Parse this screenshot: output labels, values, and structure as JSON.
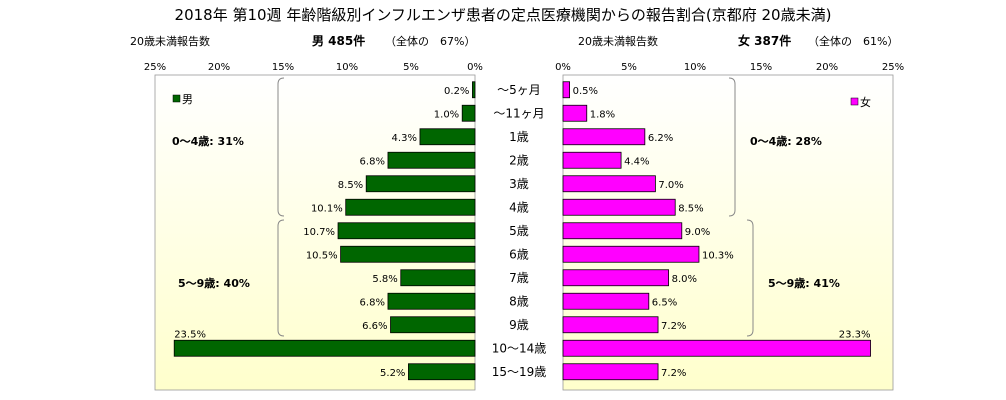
{
  "title": "2018年 第10週 年齢階級別インフルエンザ患者の定点医療機関からの報告割合(京都府 20歳未満)",
  "left_panel": {
    "caption": "20歳未満報告数",
    "summary_prefix": "男 485件",
    "summary_suffix": "（全体の　67%）",
    "legend": "男",
    "group_labels": [
      "0～4歳: 31%",
      "5～9歳: 40%"
    ]
  },
  "right_panel": {
    "caption": "20歳未満報告数",
    "summary_prefix": "女 387件",
    "summary_suffix": "（全体の　61%）",
    "legend": "女",
    "group_labels": [
      "0～4歳: 28%",
      "5～9歳: 41%"
    ]
  },
  "colors": {
    "male": "#006600",
    "female": "#ff00ff",
    "panel_bg_top": "#ffffff",
    "panel_bg_bottom": "#ffffcc"
  },
  "chart_data": {
    "type": "bar",
    "orientation": "horizontal-population-pyramid",
    "title": "2018年 第10週 年齢階級別インフルエンザ患者の定点医療機関からの報告割合(京都府 20歳未満)",
    "categories": [
      "～5ヶ月",
      "～11ヶ月",
      "1歳",
      "2歳",
      "3歳",
      "4歳",
      "5歳",
      "6歳",
      "7歳",
      "8歳",
      "9歳",
      "10～14歳",
      "15～19歳"
    ],
    "series": [
      {
        "name": "男",
        "values": [
          0.2,
          1.0,
          4.3,
          6.8,
          8.5,
          10.1,
          10.7,
          10.5,
          5.8,
          6.8,
          6.6,
          23.5,
          5.2
        ],
        "labels": [
          "0.2%",
          "1.0%",
          "4.3%",
          "6.8%",
          "8.5%",
          "10.1%",
          "10.7%",
          "10.5%",
          "5.8%",
          "6.8%",
          "6.6%",
          "23.5%",
          "5.2%"
        ]
      },
      {
        "name": "女",
        "values": [
          0.5,
          1.8,
          6.2,
          4.4,
          7.0,
          8.5,
          9.0,
          10.3,
          8.0,
          6.5,
          7.2,
          23.3,
          7.2
        ],
        "labels": [
          "0.5%",
          "1.8%",
          "6.2%",
          "4.4%",
          "7.0%",
          "8.5%",
          "9.0%",
          "10.3%",
          "8.0%",
          "6.5%",
          "7.2%",
          "23.3%",
          "7.2%"
        ]
      }
    ],
    "xlim": [
      0,
      25
    ],
    "xticks_male": [
      "25%",
      "20%",
      "15%",
      "10%",
      "5%",
      "0%"
    ],
    "xticks_female": [
      "0%",
      "5%",
      "10%",
      "15%",
      "20%",
      "25%"
    ],
    "grid": false,
    "legend_male": "top-left",
    "legend_female": "top-right"
  }
}
